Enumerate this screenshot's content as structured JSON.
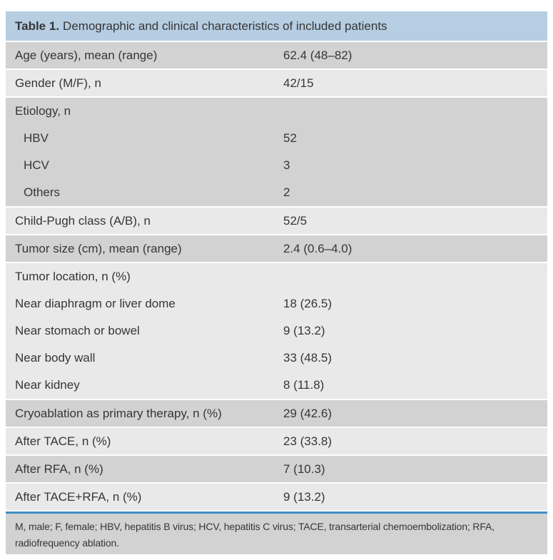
{
  "table": {
    "header": {
      "label": "Table 1.",
      "title": "Demographic and clinical characteristics of included patients"
    },
    "rows": [
      {
        "type": "row",
        "shade": "medium",
        "label": "Age (years), mean (range)",
        "value": "62.4 (48–82)"
      },
      {
        "type": "row",
        "shade": "light",
        "label": "Gender (M/F), n",
        "value": "42/15"
      },
      {
        "type": "group",
        "shade": "medium",
        "lines": [
          {
            "label": "Etiology, n",
            "value": "",
            "indent": false
          },
          {
            "label": "HBV",
            "value": "52",
            "indent": true
          },
          {
            "label": "HCV",
            "value": "3",
            "indent": true
          },
          {
            "label": "Others",
            "value": "2",
            "indent": true
          }
        ]
      },
      {
        "type": "row",
        "shade": "light",
        "label": "Child-Pugh class (A/B), n",
        "value": "52/5"
      },
      {
        "type": "row",
        "shade": "medium",
        "label": "Tumor size (cm), mean (range)",
        "value": "2.4 (0.6–4.0)"
      },
      {
        "type": "group",
        "shade": "light",
        "lines": [
          {
            "label": "Tumor location, n (%)",
            "value": "",
            "indent": false
          },
          {
            "label": "Near diaphragm or liver dome",
            "value": "18 (26.5)",
            "indent": false
          },
          {
            "label": "Near stomach or bowel",
            "value": "9 (13.2)",
            "indent": false
          },
          {
            "label": "Near body wall",
            "value": "33 (48.5)",
            "indent": false
          },
          {
            "label": "Near kidney",
            "value": "8 (11.8)",
            "indent": false
          }
        ]
      },
      {
        "type": "row",
        "shade": "medium",
        "label": "Cryoablation as primary therapy, n (%)",
        "value": "29 (42.6)"
      },
      {
        "type": "row",
        "shade": "light",
        "label": "After TACE, n (%)",
        "value": "23 (33.8)"
      },
      {
        "type": "row",
        "shade": "medium",
        "label": "After RFA, n (%)",
        "value": "7 (10.3)"
      },
      {
        "type": "row",
        "shade": "light",
        "label": "After TACE+RFA, n (%)",
        "value": "9 (13.2)"
      }
    ],
    "footnote": {
      "line1": "M, male; F, female; HBV, hepatitis B virus; HCV, hepatitis C virus; TACE, transarterial chemoembolization; RFA,",
      "line2": "radiofrequency ablation."
    },
    "colors": {
      "header_bg": "#b6cde2",
      "row_medium": "#d2d2d2",
      "row_light": "#e9e9e9",
      "rule_blue": "#3e8ec6",
      "text": "#363636"
    }
  }
}
